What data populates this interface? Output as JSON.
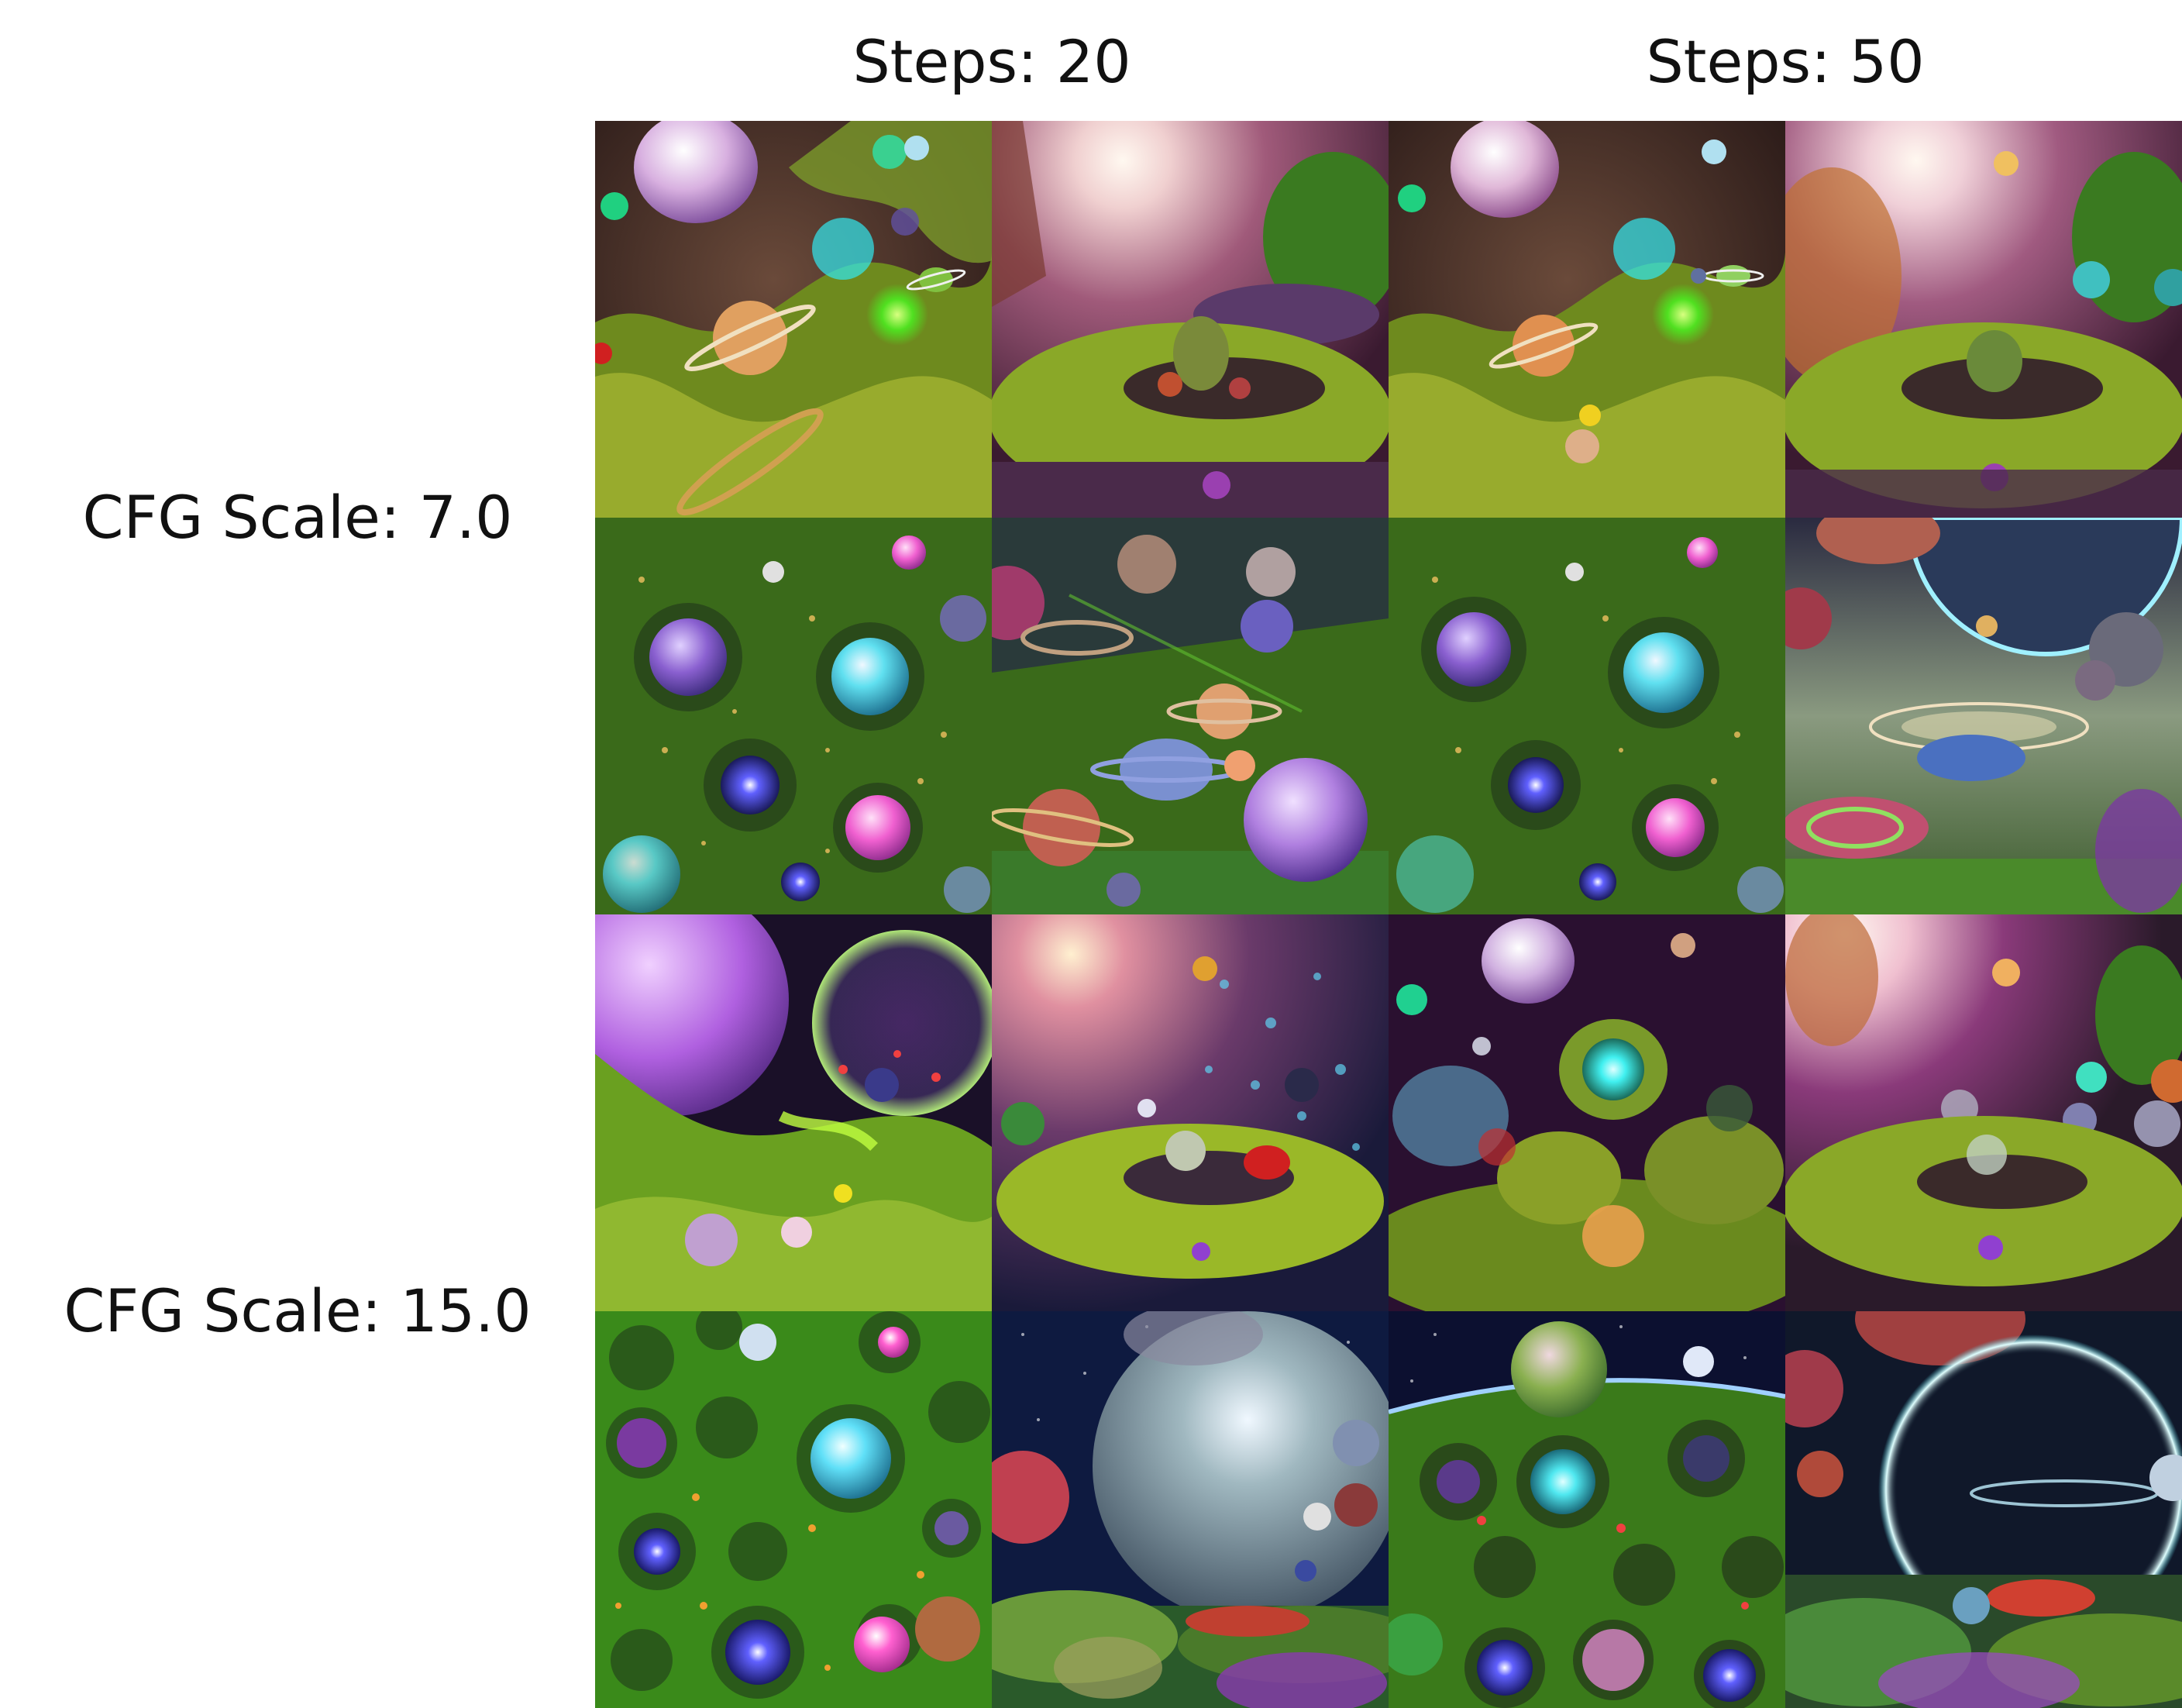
{
  "columns": [
    {
      "label": "Steps: 20"
    },
    {
      "label": "Steps: 50"
    }
  ],
  "rows": [
    {
      "label": "CFG Scale: 7.0"
    },
    {
      "label": "CFG Scale: 15.0"
    }
  ],
  "colors": {
    "moss": "#5a8a1e",
    "moss_light": "#9cc43a",
    "space": "#1a0f2e",
    "nebula": "#8a3a9a",
    "glow_cyan": "#4fe0e8",
    "glow_pink": "#e84fc0",
    "sun": "#ffe8d0"
  }
}
